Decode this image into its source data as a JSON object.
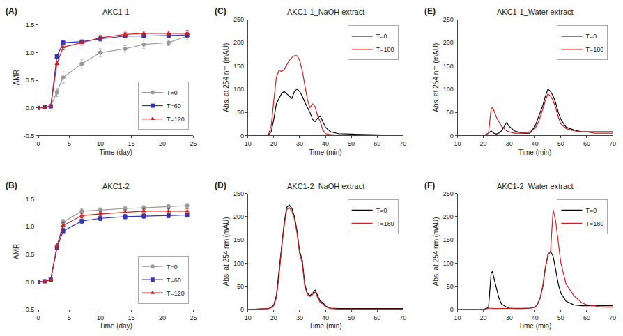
{
  "chart_data": [
    {
      "type": "line",
      "title": "AKC1-1",
      "annotations": [
        "(A)"
      ],
      "x_label": "Time (day)",
      "y_label": "AMR",
      "xlim": [
        0,
        25
      ],
      "xticks": [
        0,
        5,
        10,
        15,
        20,
        25
      ],
      "ylim": [
        -0.5,
        1.6
      ],
      "yticks": [
        -0.5,
        {
          "value": 0,
          "label": "0.0"
        },
        0.5,
        {
          "value": 1,
          "label": "1.0"
        },
        1.5
      ],
      "grid": false,
      "legend": "lower right",
      "series": [
        {
          "name": "T=0",
          "color": "#999999",
          "marker": "circle",
          "x": [
            0,
            1,
            2,
            3,
            4,
            7,
            10,
            14,
            17,
            21,
            24
          ],
          "values": [
            0.0,
            0.01,
            0.03,
            0.28,
            0.55,
            0.8,
            1.0,
            1.07,
            1.15,
            1.18,
            1.3
          ],
          "yerr": [
            0.005,
            0.005,
            0.01,
            0.07,
            0.1,
            0.08,
            0.07,
            0.06,
            0.08,
            0.05,
            0.07
          ]
        },
        {
          "name": "T=60",
          "color": "#3333bb",
          "marker": "square",
          "x": [
            0,
            1,
            2,
            3,
            4,
            7,
            10,
            14,
            17,
            21,
            24
          ],
          "values": [
            0.0,
            0.01,
            0.03,
            0.93,
            1.18,
            1.2,
            1.25,
            1.3,
            1.3,
            1.31,
            1.32
          ],
          "yerr": [
            0.005,
            0.005,
            0.01,
            0.04,
            0.04,
            0.03,
            0.04,
            0.03,
            0.03,
            0.03,
            0.04
          ]
        },
        {
          "name": "T=120",
          "color": "#cc2222",
          "marker": "triangle-up",
          "x": [
            0,
            1,
            2,
            3,
            4,
            7,
            10,
            14,
            17,
            21,
            24
          ],
          "values": [
            0.0,
            0.01,
            0.03,
            0.8,
            1.1,
            1.18,
            1.27,
            1.33,
            1.35,
            1.35,
            1.35
          ],
          "yerr": [
            0.005,
            0.005,
            0.01,
            0.04,
            0.05,
            0.04,
            0.04,
            0.04,
            0.04,
            0.04,
            0.05
          ]
        }
      ]
    },
    {
      "type": "line",
      "title": "AKC1-2",
      "annotations": [
        "(B)"
      ],
      "x_label": "Time (day)",
      "y_label": "AMR",
      "xlim": [
        0,
        25
      ],
      "xticks": [
        0,
        5,
        10,
        15,
        20,
        25
      ],
      "ylim": [
        -0.5,
        1.6
      ],
      "yticks": [
        -0.5,
        {
          "value": 0,
          "label": "0.0"
        },
        0.5,
        {
          "value": 1,
          "label": "1.0"
        },
        1.5
      ],
      "grid": false,
      "legend": "lower right",
      "series": [
        {
          "name": "T=0",
          "color": "#999999",
          "marker": "circle",
          "x": [
            0,
            1,
            2,
            3,
            4,
            7,
            10,
            14,
            17,
            21,
            24
          ],
          "values": [
            0.0,
            0.01,
            0.04,
            0.62,
            1.08,
            1.28,
            1.3,
            1.33,
            1.34,
            1.36,
            1.38
          ],
          "yerr": [
            0.005,
            0.005,
            0.01,
            0.04,
            0.05,
            0.04,
            0.04,
            0.04,
            0.04,
            0.04,
            0.04
          ]
        },
        {
          "name": "T=60",
          "color": "#3333bb",
          "marker": "square",
          "x": [
            0,
            1,
            2,
            3,
            4,
            7,
            10,
            14,
            17,
            21,
            24
          ],
          "values": [
            0.0,
            0.01,
            0.04,
            0.62,
            0.92,
            1.1,
            1.15,
            1.18,
            1.19,
            1.2,
            1.21
          ],
          "yerr": [
            0.005,
            0.005,
            0.01,
            0.04,
            0.05,
            0.04,
            0.04,
            0.04,
            0.04,
            0.04,
            0.04
          ]
        },
        {
          "name": "T=120",
          "color": "#cc2222",
          "marker": "triangle-up",
          "x": [
            0,
            1,
            2,
            3,
            4,
            7,
            10,
            14,
            17,
            21,
            24
          ],
          "values": [
            0.0,
            0.01,
            0.04,
            0.65,
            1.02,
            1.2,
            1.23,
            1.26,
            1.28,
            1.28,
            1.28
          ],
          "yerr": [
            0.005,
            0.005,
            0.01,
            0.04,
            0.05,
            0.04,
            0.04,
            0.04,
            0.04,
            0.04,
            0.04
          ]
        }
      ]
    },
    {
      "type": "line",
      "title": "AKC1-1_NaOH extract",
      "annotations": [
        "(C)"
      ],
      "x_label": "Time (min)",
      "y_label": "Abs. at 254 nm (mAU)",
      "xlim": [
        10,
        70
      ],
      "xticks": [
        10,
        20,
        30,
        40,
        50,
        60,
        70
      ],
      "ylim": [
        0,
        250
      ],
      "yticks": [
        0,
        50,
        100,
        150,
        200,
        250
      ],
      "grid": false,
      "legend": "upper right",
      "series": [
        {
          "name": "T=0",
          "color": "#000000",
          "x": [
            10,
            17,
            18,
            19,
            20,
            21,
            22,
            23,
            24,
            25,
            26,
            27,
            28,
            29,
            30,
            31,
            32,
            33,
            34,
            35,
            36,
            37,
            38,
            39,
            40,
            42,
            45,
            50,
            55,
            60,
            65,
            70
          ],
          "values": [
            0,
            0,
            2,
            8,
            35,
            68,
            80,
            90,
            95,
            90,
            85,
            80,
            95,
            100,
            95,
            85,
            72,
            62,
            50,
            35,
            30,
            38,
            42,
            30,
            18,
            8,
            4,
            3,
            2,
            2,
            1,
            1
          ]
        },
        {
          "name": "T=180",
          "color": "#cc2222",
          "x": [
            10,
            17,
            18,
            19,
            20,
            21,
            22,
            23,
            24,
            25,
            26,
            27,
            28,
            29,
            30,
            31,
            32,
            33,
            34,
            35,
            36,
            37,
            38,
            39,
            40,
            42,
            45,
            50,
            55,
            60,
            65,
            70
          ],
          "values": [
            0,
            0,
            3,
            20,
            75,
            125,
            140,
            138,
            142,
            152,
            162,
            168,
            172,
            172,
            162,
            140,
            108,
            78,
            60,
            68,
            62,
            42,
            30,
            12,
            4,
            2,
            1,
            1,
            1,
            0,
            0,
            0
          ]
        }
      ]
    },
    {
      "type": "line",
      "title": "AKC1-2_NaOH extract",
      "annotations": [
        "(D)"
      ],
      "x_label": "Time (min)",
      "y_label": "Abs. at 254 nm (mAU)",
      "xlim": [
        10,
        70
      ],
      "xticks": [
        10,
        20,
        30,
        40,
        50,
        60,
        70
      ],
      "ylim": [
        0,
        250
      ],
      "yticks": [
        0,
        50,
        100,
        150,
        200,
        250
      ],
      "grid": false,
      "legend": "upper right",
      "series": [
        {
          "name": "T=0",
          "color": "#000000",
          "x": [
            10,
            18,
            19,
            20,
            21,
            22,
            23,
            24,
            25,
            26,
            27,
            28,
            29,
            30,
            31,
            32,
            33,
            34,
            35,
            36,
            37,
            38,
            39,
            40,
            41,
            42,
            45,
            50,
            55,
            60,
            65,
            70
          ],
          "values": [
            0,
            2,
            5,
            10,
            30,
            80,
            140,
            185,
            220,
            225,
            218,
            200,
            170,
            125,
            108,
            55,
            35,
            30,
            35,
            42,
            30,
            18,
            15,
            8,
            5,
            3,
            2,
            2,
            2,
            3,
            2,
            2
          ]
        },
        {
          "name": "T=180",
          "color": "#cc2222",
          "x": [
            10,
            18,
            19,
            20,
            21,
            22,
            23,
            24,
            25,
            26,
            27,
            28,
            29,
            30,
            31,
            32,
            33,
            34,
            35,
            36,
            37,
            38,
            39,
            40,
            41,
            42,
            45,
            50,
            55,
            60,
            65,
            70
          ],
          "values": [
            0,
            2,
            4,
            8,
            25,
            70,
            130,
            178,
            215,
            220,
            212,
            195,
            165,
            120,
            100,
            50,
            32,
            28,
            32,
            38,
            25,
            15,
            12,
            6,
            4,
            2,
            1,
            1,
            1,
            2,
            1,
            1
          ]
        }
      ]
    },
    {
      "type": "line",
      "title": "AKC1-1_Water extract",
      "annotations": [
        "(E)"
      ],
      "x_label": "Time (min)",
      "y_label": "Abs. at 254 nm (mAU)",
      "xlim": [
        10,
        70
      ],
      "xticks": [
        10,
        20,
        30,
        40,
        50,
        60,
        70
      ],
      "ylim": [
        0,
        250
      ],
      "yticks": [
        0,
        50,
        100,
        150,
        200,
        250
      ],
      "grid": false,
      "legend": "upper right",
      "series": [
        {
          "name": "T=0",
          "color": "#000000",
          "x": [
            10,
            20,
            21,
            22,
            23,
            24,
            25,
            26,
            27,
            28,
            29,
            30,
            32,
            35,
            38,
            40,
            41,
            42,
            43,
            44,
            45,
            46,
            47,
            48,
            49,
            50,
            52,
            55,
            58,
            60,
            63,
            65,
            68,
            70
          ],
          "values": [
            0,
            0,
            2,
            5,
            10,
            5,
            3,
            5,
            10,
            20,
            28,
            20,
            10,
            5,
            5,
            20,
            35,
            50,
            65,
            85,
            100,
            95,
            85,
            70,
            50,
            35,
            18,
            12,
            8,
            8,
            8,
            8,
            8,
            8
          ]
        },
        {
          "name": "T=180",
          "color": "#cc2222",
          "x": [
            10,
            20,
            21,
            22,
            23,
            23.5,
            24,
            25,
            26,
            27,
            28,
            29,
            30,
            32,
            35,
            38,
            40,
            41,
            42,
            43,
            44,
            45,
            46,
            47,
            48,
            49,
            50,
            52,
            55,
            58,
            60,
            63,
            65,
            68,
            70
          ],
          "values": [
            0,
            0,
            2,
            5,
            58,
            60,
            55,
            40,
            30,
            20,
            15,
            10,
            8,
            5,
            5,
            8,
            15,
            25,
            40,
            58,
            75,
            90,
            85,
            75,
            60,
            40,
            25,
            15,
            10,
            8,
            8,
            5,
            5,
            5,
            5
          ]
        }
      ]
    },
    {
      "type": "line",
      "title": "AKC1-2_Water extract",
      "annotations": [
        "(F)"
      ],
      "x_label": "Time (min)",
      "y_label": "Abs. at 254 nm (mAU)",
      "xlim": [
        10,
        70
      ],
      "xticks": [
        10,
        20,
        30,
        40,
        50,
        60,
        70
      ],
      "ylim": [
        0,
        250
      ],
      "yticks": [
        0,
        50,
        100,
        150,
        200,
        250
      ],
      "grid": false,
      "legend": "upper right",
      "series": [
        {
          "name": "T=0",
          "color": "#000000",
          "x": [
            10,
            20,
            21,
            22,
            23,
            23.5,
            24,
            25,
            26,
            27,
            28,
            29,
            30,
            32,
            35,
            38,
            40,
            41,
            42,
            43,
            44,
            45,
            46,
            47,
            48,
            49,
            50,
            52,
            55,
            58,
            60,
            63,
            65,
            68,
            70
          ],
          "values": [
            0,
            0,
            2,
            5,
            78,
            82,
            70,
            45,
            25,
            12,
            8,
            5,
            3,
            2,
            2,
            3,
            5,
            12,
            25,
            50,
            90,
            118,
            125,
            115,
            85,
            55,
            35,
            18,
            10,
            8,
            8,
            8,
            8,
            8,
            8
          ]
        },
        {
          "name": "T=180",
          "color": "#cc2222",
          "x": [
            10,
            20,
            21,
            22,
            23,
            23.5,
            24,
            25,
            26,
            27,
            28,
            29,
            30,
            32,
            35,
            38,
            40,
            41,
            42,
            43,
            44,
            45,
            46,
            47,
            48,
            49,
            50,
            52,
            55,
            58,
            60,
            63,
            65,
            68,
            70
          ],
          "values": [
            0,
            0,
            1,
            3,
            2,
            2,
            2,
            2,
            2,
            2,
            2,
            2,
            2,
            2,
            2,
            3,
            5,
            12,
            25,
            50,
            90,
            118,
            125,
            215,
            190,
            140,
            100,
            55,
            30,
            15,
            10,
            8,
            6,
            5,
            5
          ]
        }
      ]
    }
  ]
}
